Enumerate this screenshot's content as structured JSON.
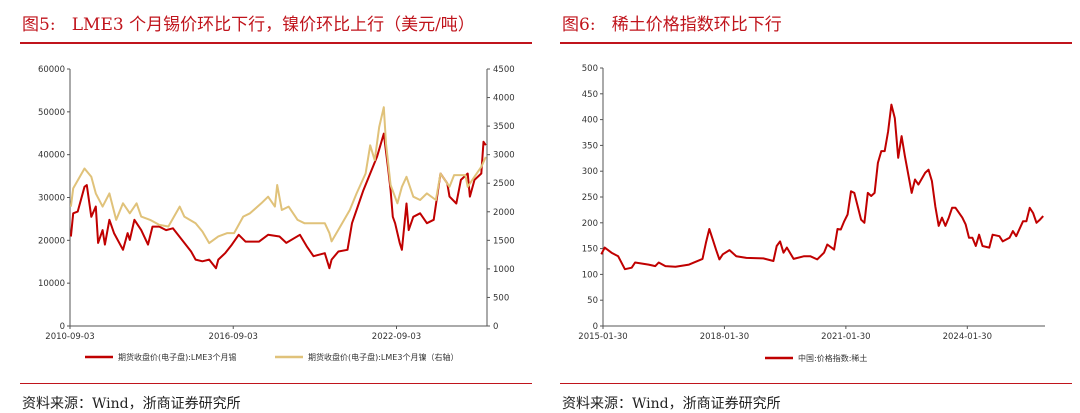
{
  "figures": [
    {
      "title": "图5:   LME3 个月锡价环比下行，镍价环比上行（美元/吨）",
      "source": "资料来源：Wind，浙商证券研究所"
    },
    {
      "title": "图6:   稀土价格指数环比下行",
      "source": "资料来源：Wind，浙商证券研究所"
    }
  ],
  "colors": {
    "title": "#c0141c",
    "tin": "#c00000",
    "nickel": "#e0c27a",
    "rare_earth": "#c00000"
  },
  "chart_data": [
    {
      "type": "line",
      "x_ticks": [
        "2010-09-03",
        "2016-09-03",
        "2022-09-03"
      ],
      "xlim": [
        "2010-09-03",
        "2025-12-31"
      ],
      "ylim": [
        0,
        60000
      ],
      "yticks": [
        0,
        10000,
        20000,
        30000,
        40000,
        50000,
        60000
      ],
      "y2lim": [
        0,
        4500
      ],
      "y2ticks": [
        0,
        500,
        1000,
        1500,
        2000,
        2500,
        3000,
        3500,
        4000,
        4500
      ],
      "legend_position": "bottom",
      "grid": false,
      "series": [
        {
          "name": "期货收盘价(电子盘):LME3个月锡",
          "axis": "left",
          "color": "#c00000",
          "points": [
            [
              "2010-09",
              20900
            ],
            [
              "2010-10",
              26300
            ],
            [
              "2010-12",
              26700
            ],
            [
              "2011-03",
              32500
            ],
            [
              "2011-04",
              32900
            ],
            [
              "2011-06",
              25500
            ],
            [
              "2011-08",
              27900
            ],
            [
              "2011-09",
              19400
            ],
            [
              "2011-11",
              22400
            ],
            [
              "2011-12",
              19000
            ],
            [
              "2012-02",
              24800
            ],
            [
              "2012-04",
              21700
            ],
            [
              "2012-08",
              17800
            ],
            [
              "2012-10",
              21700
            ],
            [
              "2012-11",
              20100
            ],
            [
              "2013-01",
              24800
            ],
            [
              "2013-04",
              22400
            ],
            [
              "2013-07",
              19000
            ],
            [
              "2013-09",
              23200
            ],
            [
              "2013-12",
              23200
            ],
            [
              "2014-03",
              22400
            ],
            [
              "2014-06",
              22800
            ],
            [
              "2014-10",
              20100
            ],
            [
              "2015-02",
              17400
            ],
            [
              "2015-04",
              15500
            ],
            [
              "2015-07",
              15100
            ],
            [
              "2015-10",
              15500
            ],
            [
              "2016-01",
              13500
            ],
            [
              "2016-02",
              15500
            ],
            [
              "2016-05",
              17000
            ],
            [
              "2016-08",
              19000
            ],
            [
              "2016-11",
              21300
            ],
            [
              "2017-02",
              19700
            ],
            [
              "2017-08",
              19700
            ],
            [
              "2017-12",
              21300
            ],
            [
              "2018-05",
              20900
            ],
            [
              "2018-08",
              19400
            ],
            [
              "2019-02",
              21300
            ],
            [
              "2019-05",
              18600
            ],
            [
              "2019-08",
              16300
            ],
            [
              "2020-01",
              17000
            ],
            [
              "2020-03",
              13500
            ],
            [
              "2020-04",
              15500
            ],
            [
              "2020-07",
              17400
            ],
            [
              "2020-11",
              17800
            ],
            [
              "2021-01",
              24000
            ],
            [
              "2021-04",
              28600
            ],
            [
              "2021-06",
              31700
            ],
            [
              "2021-09",
              35600
            ],
            [
              "2021-12",
              39500
            ],
            [
              "2022-03",
              44900
            ],
            [
              "2022-05",
              36400
            ],
            [
              "2022-06",
              31700
            ],
            [
              "2022-07",
              25500
            ],
            [
              "2022-08",
              24000
            ],
            [
              "2022-10",
              19400
            ],
            [
              "2022-11",
              17800
            ],
            [
              "2023-01",
              28600
            ],
            [
              "2023-02",
              22400
            ],
            [
              "2023-04",
              25500
            ],
            [
              "2023-07",
              26300
            ],
            [
              "2023-10",
              24000
            ],
            [
              "2024-01",
              24800
            ],
            [
              "2024-04",
              35600
            ],
            [
              "2024-07",
              33300
            ],
            [
              "2024-08",
              30200
            ],
            [
              "2024-11",
              28600
            ],
            [
              "2025-01",
              34100
            ],
            [
              "2025-04",
              35600
            ],
            [
              "2025-05",
              30200
            ],
            [
              "2025-07",
              34100
            ],
            [
              "2025-10",
              35600
            ],
            [
              "2025-11",
              43000
            ],
            [
              "2025-12",
              42200
            ]
          ]
        },
        {
          "name": "期货收盘价(电子盘):LME3个月镍（右轴）",
          "axis": "right",
          "color": "#e0c27a",
          "points": [
            [
              "2010-09",
              2090
            ],
            [
              "2010-10",
              2410
            ],
            [
              "2011-03",
              2758
            ],
            [
              "2011-06",
              2613
            ],
            [
              "2011-08",
              2322
            ],
            [
              "2011-11",
              2090
            ],
            [
              "2012-02",
              2322
            ],
            [
              "2012-05",
              1858
            ],
            [
              "2012-08",
              2148
            ],
            [
              "2012-11",
              1974
            ],
            [
              "2013-02",
              2148
            ],
            [
              "2013-04",
              1916
            ],
            [
              "2013-08",
              1858
            ],
            [
              "2013-12",
              1771
            ],
            [
              "2014-04",
              1742
            ],
            [
              "2014-09",
              2090
            ],
            [
              "2014-11",
              1916
            ],
            [
              "2015-04",
              1800
            ],
            [
              "2015-07",
              1655
            ],
            [
              "2015-10",
              1452
            ],
            [
              "2016-02",
              1568
            ],
            [
              "2016-06",
              1626
            ],
            [
              "2016-09",
              1626
            ],
            [
              "2017-01",
              1916
            ],
            [
              "2017-04",
              1974
            ],
            [
              "2017-09",
              2148
            ],
            [
              "2017-12",
              2264
            ],
            [
              "2018-03",
              2090
            ],
            [
              "2018-04",
              2468
            ],
            [
              "2018-06",
              2032
            ],
            [
              "2018-09",
              2090
            ],
            [
              "2019-01",
              1858
            ],
            [
              "2019-04",
              1800
            ],
            [
              "2019-09",
              1800
            ],
            [
              "2020-01",
              1800
            ],
            [
              "2020-03",
              1626
            ],
            [
              "2020-04",
              1481
            ],
            [
              "2020-07",
              1684
            ],
            [
              "2020-12",
              2032
            ],
            [
              "2021-03",
              2322
            ],
            [
              "2021-07",
              2671
            ],
            [
              "2021-09",
              3164
            ],
            [
              "2021-11",
              2903
            ],
            [
              "2022-01",
              3484
            ],
            [
              "2022-03",
              3832
            ],
            [
              "2022-04",
              3193
            ],
            [
              "2022-06",
              2468
            ],
            [
              "2022-09",
              2148
            ],
            [
              "2022-11",
              2438
            ],
            [
              "2023-01",
              2613
            ],
            [
              "2023-04",
              2264
            ],
            [
              "2023-07",
              2206
            ],
            [
              "2023-10",
              2322
            ],
            [
              "2024-02",
              2206
            ],
            [
              "2024-04",
              2671
            ],
            [
              "2024-08",
              2438
            ],
            [
              "2024-10",
              2642
            ],
            [
              "2025-03",
              2642
            ],
            [
              "2025-04",
              2438
            ],
            [
              "2025-06",
              2555
            ],
            [
              "2025-10",
              2787
            ],
            [
              "2025-12",
              2961
            ]
          ]
        }
      ]
    },
    {
      "type": "line",
      "x_ticks": [
        "2015-01-30",
        "2018-01-30",
        "2021-01-30",
        "2024-01-30"
      ],
      "xlim": [
        "2015-01-30",
        "2025-12-31"
      ],
      "ylim": [
        0,
        500
      ],
      "yticks": [
        0,
        50,
        100,
        150,
        200,
        250,
        300,
        350,
        400,
        450,
        500
      ],
      "legend_position": "bottom",
      "grid": false,
      "series": [
        {
          "name": "中国:价格指数:稀土",
          "axis": "left",
          "color": "#c00000",
          "points": [
            [
              "2015-01",
              139
            ],
            [
              "2015-02",
              152
            ],
            [
              "2015-04",
              142
            ],
            [
              "2015-06",
              135
            ],
            [
              "2015-08",
              110
            ],
            [
              "2015-10",
              113
            ],
            [
              "2015-11",
              123
            ],
            [
              "2016-03",
              119
            ],
            [
              "2016-05",
              116
            ],
            [
              "2016-06",
              123
            ],
            [
              "2016-08",
              116
            ],
            [
              "2016-11",
              115
            ],
            [
              "2017-03",
              119
            ],
            [
              "2017-07",
              130
            ],
            [
              "2017-08",
              161
            ],
            [
              "2017-09",
              188
            ],
            [
              "2017-10",
              168
            ],
            [
              "2017-11",
              148
            ],
            [
              "2017-12",
              129
            ],
            [
              "2018-01",
              139
            ],
            [
              "2018-03",
              147
            ],
            [
              "2018-05",
              135
            ],
            [
              "2018-08",
              132
            ],
            [
              "2019-01",
              131
            ],
            [
              "2019-04",
              126
            ],
            [
              "2019-05",
              155
            ],
            [
              "2019-06",
              164
            ],
            [
              "2019-07",
              142
            ],
            [
              "2019-08",
              152
            ],
            [
              "2019-10",
              130
            ],
            [
              "2020-01",
              135
            ],
            [
              "2020-03",
              135
            ],
            [
              "2020-05",
              129
            ],
            [
              "2020-07",
              142
            ],
            [
              "2020-08",
              158
            ],
            [
              "2020-10",
              148
            ],
            [
              "2020-11",
              188
            ],
            [
              "2020-12",
              187
            ],
            [
              "2021-01",
              203
            ],
            [
              "2021-02",
              216
            ],
            [
              "2021-03",
              261
            ],
            [
              "2021-04",
              258
            ],
            [
              "2021-05",
              232
            ],
            [
              "2021-06",
              206
            ],
            [
              "2021-07",
              200
            ],
            [
              "2021-08",
              258
            ],
            [
              "2021-09",
              252
            ],
            [
              "2021-10",
              258
            ],
            [
              "2021-11",
              316
            ],
            [
              "2021-12",
              339
            ],
            [
              "2022-01",
              339
            ],
            [
              "2022-02",
              377
            ],
            [
              "2022-03",
              429
            ],
            [
              "2022-04",
              403
            ],
            [
              "2022-05",
              326
            ],
            [
              "2022-06",
              368
            ],
            [
              "2022-07",
              329
            ],
            [
              "2022-09",
              258
            ],
            [
              "2022-10",
              284
            ],
            [
              "2022-11",
              274
            ],
            [
              "2023-01",
              297
            ],
            [
              "2023-02",
              303
            ],
            [
              "2023-03",
              281
            ],
            [
              "2023-04",
              232
            ],
            [
              "2023-05",
              194
            ],
            [
              "2023-06",
              210
            ],
            [
              "2023-07",
              194
            ],
            [
              "2023-08",
              210
            ],
            [
              "2023-09",
              229
            ],
            [
              "2023-10",
              229
            ],
            [
              "2023-12",
              210
            ],
            [
              "2024-01",
              197
            ],
            [
              "2024-02",
              171
            ],
            [
              "2024-03",
              171
            ],
            [
              "2024-04",
              155
            ],
            [
              "2024-05",
              177
            ],
            [
              "2024-06",
              155
            ],
            [
              "2024-08",
              152
            ],
            [
              "2024-09",
              177
            ],
            [
              "2024-11",
              174
            ],
            [
              "2024-12",
              164
            ],
            [
              "2025-02",
              171
            ],
            [
              "2025-03",
              184
            ],
            [
              "2025-04",
              174
            ],
            [
              "2025-06",
              203
            ],
            [
              "2025-07",
              203
            ],
            [
              "2025-08",
              229
            ],
            [
              "2025-09",
              219
            ],
            [
              "2025-10",
              200
            ],
            [
              "2025-11",
              206
            ],
            [
              "2025-12",
              213
            ]
          ]
        }
      ]
    }
  ]
}
